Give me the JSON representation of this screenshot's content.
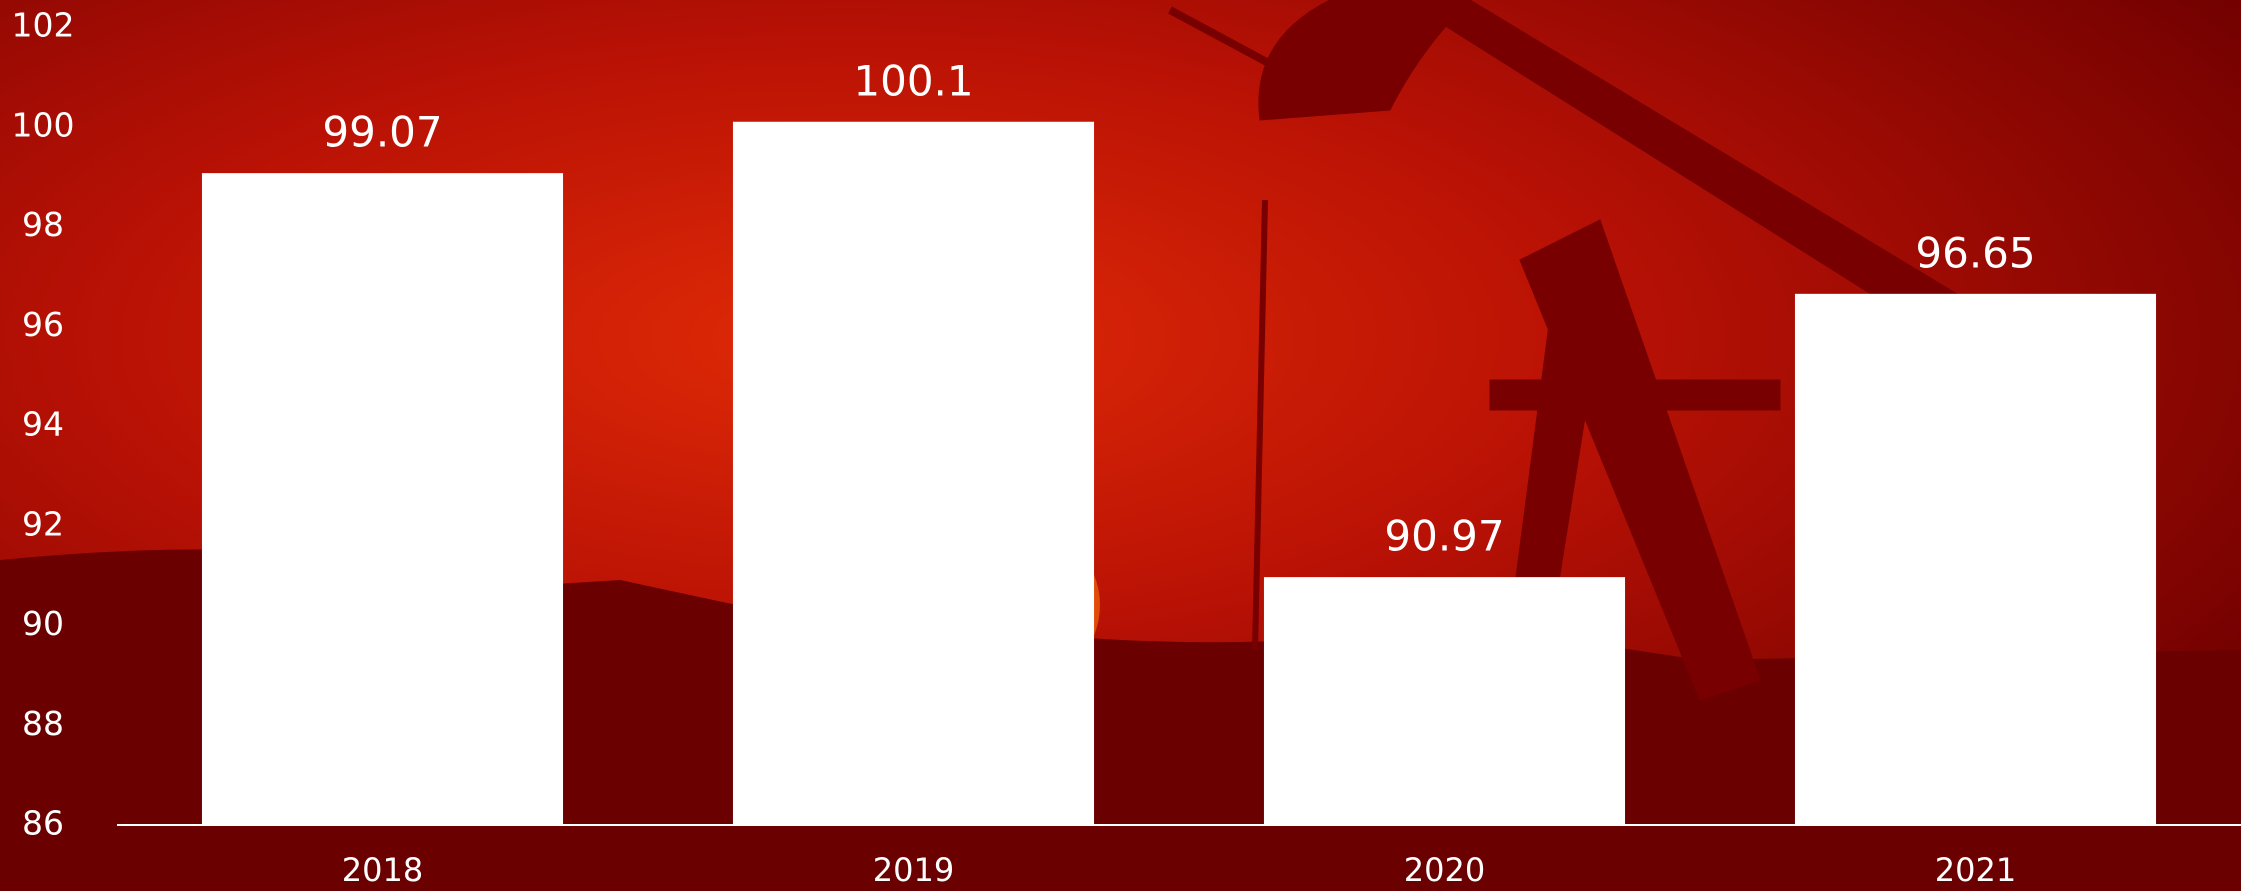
{
  "chart_data": {
    "type": "bar",
    "categories": [
      "2018",
      "2019",
      "2020",
      "2021"
    ],
    "values": [
      99.07,
      100.1,
      90.97,
      96.65
    ],
    "color": "#ffffff",
    "ylim": [
      86,
      102
    ],
    "yticks": [
      86,
      88,
      90,
      92,
      94,
      96,
      98,
      100,
      102
    ],
    "grid": false
  }
}
